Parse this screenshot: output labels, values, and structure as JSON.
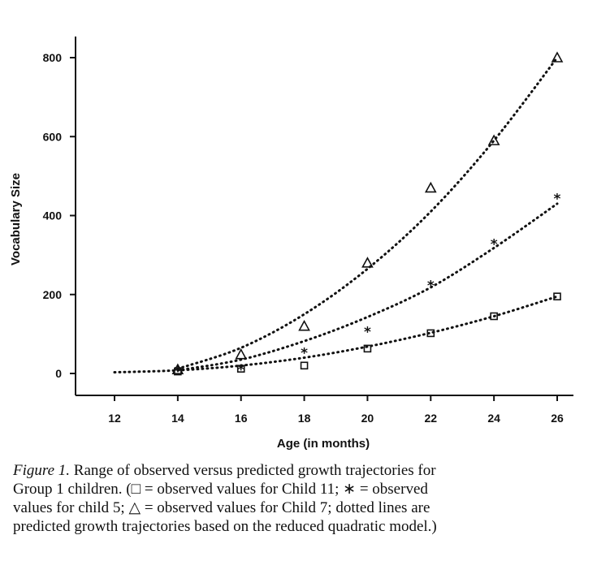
{
  "chart_data": {
    "type": "scatter",
    "title": "",
    "xlabel": "Age (in months)",
    "ylabel": "Vocabulary Size",
    "xlim": [
      11,
      27
    ],
    "ylim": [
      -50,
      840
    ],
    "x_ticks": [
      12,
      14,
      16,
      18,
      20,
      22,
      24,
      26
    ],
    "y_ticks": [
      0,
      200,
      400,
      600,
      800
    ],
    "grid": false,
    "legend": "none",
    "series": [
      {
        "marker": "square",
        "points": [
          [
            14,
            5
          ],
          [
            16,
            12
          ],
          [
            18,
            20
          ],
          [
            20,
            63
          ],
          [
            22,
            102
          ],
          [
            24,
            145
          ],
          [
            26,
            195
          ]
        ],
        "fit": [
          [
            12,
            3
          ],
          [
            14,
            8
          ],
          [
            16,
            20
          ],
          [
            18,
            40
          ],
          [
            20,
            68
          ],
          [
            22,
            103
          ],
          [
            24,
            145
          ],
          [
            26,
            195
          ]
        ]
      },
      {
        "marker": "star",
        "points": [
          [
            14,
            8
          ],
          [
            16,
            12
          ],
          [
            18,
            55
          ],
          [
            20,
            108
          ],
          [
            22,
            225
          ],
          [
            24,
            330
          ],
          [
            26,
            445
          ]
        ],
        "fit": [
          [
            14,
            8
          ],
          [
            16,
            35
          ],
          [
            18,
            82
          ],
          [
            20,
            143
          ],
          [
            22,
            218
          ],
          [
            24,
            318
          ],
          [
            26,
            430
          ]
        ]
      },
      {
        "marker": "triangle",
        "points": [
          [
            14,
            10
          ],
          [
            16,
            48
          ],
          [
            18,
            120
          ],
          [
            20,
            280
          ],
          [
            22,
            470
          ],
          [
            24,
            590
          ],
          [
            26,
            800
          ]
        ],
        "fit": [
          [
            14,
            12
          ],
          [
            16,
            65
          ],
          [
            18,
            150
          ],
          [
            20,
            265
          ],
          [
            22,
            410
          ],
          [
            24,
            590
          ],
          [
            26,
            800
          ]
        ]
      }
    ]
  },
  "caption": {
    "label": "Figure 1.",
    "lines": [
      "Range of observed versus predicted growth trajectories for",
      "Group 1 children. (□ = observed values for Child 11; ∗ = observed",
      "values for child 5; △ = observed values for Child 7; dotted lines are",
      "predicted growth trajectories based on the reduced quadratic model.)"
    ]
  }
}
